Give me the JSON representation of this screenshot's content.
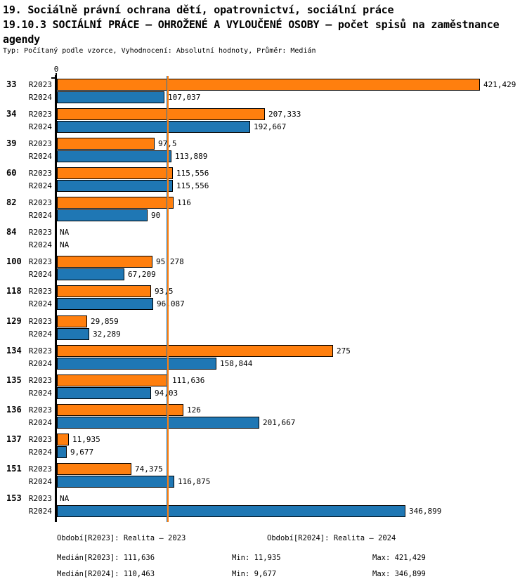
{
  "header": {
    "title_line1": "19. Sociálně právní ochrana dětí, opatrovnictví, sociální práce",
    "title_line2": "19.10.3 SOCIÁLNÍ PRÁCE – OHROŽENÉ A VYLOUČENÉ OSOBY – počet spisů na zaměstnance",
    "title_line3": "agendy",
    "subtitle": "Typ: Počítaný podle vzorce, Vyhodnocení: Absolutní hodnoty, Průměr: Medián"
  },
  "chart_data": {
    "type": "bar",
    "orientation": "horizontal",
    "title": "19.10.3 SOCIÁLNÍ PRÁCE – OHROŽENÉ A VYLOUČENÉ OSOBY – počet spisů na zaměstnance agendy",
    "xlabel": "",
    "ylabel": "",
    "xlim": [
      0,
      465
    ],
    "grid": false,
    "zero_tick_label": "0",
    "na_label": "NA",
    "categories": [
      "33",
      "34",
      "39",
      "60",
      "82",
      "84",
      "100",
      "118",
      "129",
      "134",
      "135",
      "136",
      "137",
      "151",
      "153"
    ],
    "series": [
      {
        "name": "R2023",
        "color": "#ff7f0e",
        "values": [
          421.429,
          207.333,
          97.5,
          115.556,
          116,
          null,
          95.278,
          93.5,
          29.859,
          275,
          111.636,
          126,
          11.935,
          74.375,
          null
        ],
        "labels": [
          "421,429",
          "207,333",
          "97,5",
          "115,556",
          "116",
          "NA",
          "95,278",
          "93,5",
          "29,859",
          "275",
          "111,636",
          "126",
          "11,935",
          "74,375",
          "NA"
        ]
      },
      {
        "name": "R2024",
        "color": "#1f77b4",
        "values": [
          107.037,
          192.667,
          113.889,
          115.556,
          90,
          null,
          67.209,
          96.087,
          32.289,
          158.844,
          94.03,
          201.667,
          9.677,
          116.875,
          346.899
        ],
        "labels": [
          "107,037",
          "192,667",
          "113,889",
          "115,556",
          "90",
          "NA",
          "67,209",
          "96,087",
          "32,289",
          "158,844",
          "94,03",
          "201,667",
          "9,677",
          "116,875",
          "346,899"
        ]
      }
    ],
    "median_lines": [
      {
        "series": "R2024",
        "value": 110.463,
        "color": "#1f77b4"
      },
      {
        "series": "R2023",
        "value": 111.636,
        "color": "#ff7f0e"
      }
    ],
    "stats": {
      "median_r2023": 111.636,
      "min_r2023": 11.935,
      "max_r2023": 421.429,
      "median_r2024": 110.463,
      "min_r2024": 9.677,
      "max_r2024": 346.899
    }
  },
  "footer": {
    "period_r2023": "Období[R2023]: Realita – 2023",
    "period_r2024": "Období[R2024]: Realita – 2024",
    "median_r2023": "Medián[R2023]: 111,636",
    "min_r2023": "Min: 11,935",
    "max_r2023": "Max: 421,429",
    "median_r2024": "Medián[R2024]: 110,463",
    "min_r2024": "Min: 9,677",
    "max_r2024": "Max: 346,899"
  },
  "colors": {
    "r2023": "#ff7f0e",
    "r2024": "#1f77b4",
    "axis": "#000000",
    "background": "#ffffff"
  }
}
